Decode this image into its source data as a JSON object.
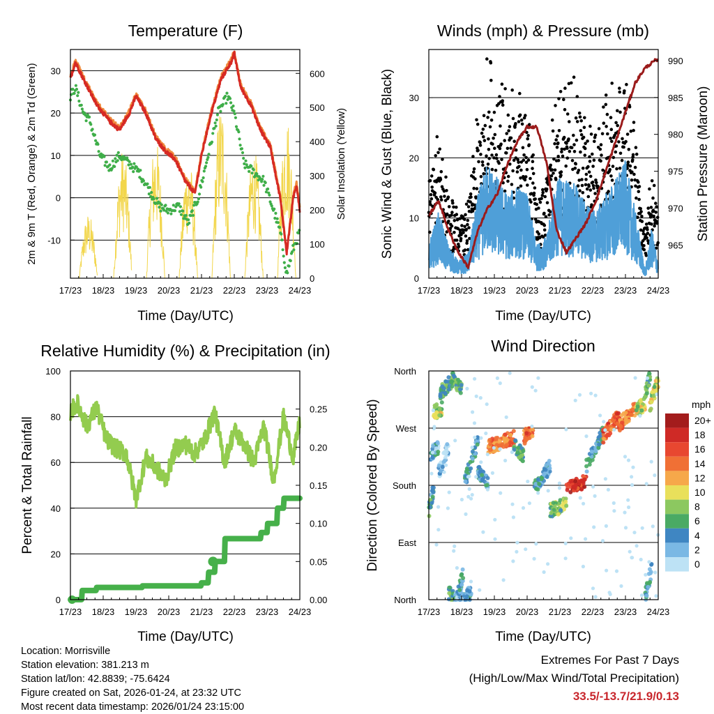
{
  "colors": {
    "temp2m": "#d62a24",
    "temp9m": "#f08a3c",
    "dewpoint": "#3fae49",
    "solar": "#f2d64b",
    "wind": "#4f9fd8",
    "gust": "#000000",
    "pressure": "#9b1b1b",
    "rh": "#93cc4f",
    "rain": "#46b04a",
    "extremes": "#c8262c"
  },
  "x_ticks": [
    "17/23",
    "18/23",
    "19/23",
    "20/23",
    "21/23",
    "22/23",
    "23/23",
    "24/23"
  ],
  "x_label": "Time (Day/UTC)",
  "chart_data": [
    {
      "type": "line",
      "title": "Temperature (F)",
      "xlabel": "Time (Day/UTC)",
      "ylabel": "2m & 9m T (Red, Orange) & 2m Td (Green)",
      "y2label": "Solar Insolation (Yellow)",
      "ylim": [
        -19,
        35
      ],
      "y2lim": [
        0,
        670
      ],
      "yticks": [
        "-10",
        "0",
        "10",
        "20",
        "30"
      ],
      "y2ticks": [
        "0",
        "100",
        "200",
        "300",
        "400",
        "500",
        "600"
      ],
      "series": [
        {
          "name": "2m T",
          "axis": "left",
          "t": [
            0,
            0.15,
            0.4,
            0.8,
            1.2,
            1.5,
            1.8,
            2.0,
            2.3,
            2.6,
            2.9,
            3.2,
            3.5,
            3.8,
            4.0,
            4.3,
            4.6,
            4.9,
            5.0,
            5.2,
            5.5,
            5.8,
            6.1,
            6.4,
            6.6,
            6.8,
            6.9,
            7.0
          ],
          "values": [
            28,
            32,
            28,
            22,
            18,
            16,
            20,
            24,
            20,
            14,
            11,
            9,
            4,
            1,
            10,
            20,
            28,
            32,
            34,
            26,
            22,
            16,
            12,
            0,
            -13,
            0,
            3,
            -3
          ]
        },
        {
          "name": "2m Td",
          "axis": "left",
          "t": [
            0,
            0.15,
            0.4,
            0.6,
            0.9,
            1.2,
            1.5,
            1.8,
            2.1,
            2.4,
            2.7,
            3.0,
            3.3,
            3.6,
            3.9,
            4.2,
            4.5,
            4.8,
            5.0,
            5.3,
            5.6,
            5.9,
            6.2,
            6.4,
            6.6,
            6.8,
            7.0
          ],
          "values": [
            24,
            26,
            20,
            18,
            10,
            7,
            10,
            8,
            6,
            2,
            -2,
            -3,
            -2,
            -6,
            0,
            10,
            20,
            24,
            20,
            8,
            6,
            4,
            -3,
            -8,
            -18,
            -12,
            -8
          ]
        },
        {
          "name": "Solar",
          "axis": "right",
          "peaks": [
            {
              "t": 0.55,
              "v": 190
            },
            {
              "t": 1.6,
              "v": 380
            },
            {
              "t": 2.6,
              "v": 410
            },
            {
              "t": 3.6,
              "v": 360
            },
            {
              "t": 4.6,
              "v": 520
            },
            {
              "t": 5.6,
              "v": 380
            },
            {
              "t": 6.6,
              "v": 480
            }
          ]
        }
      ]
    },
    {
      "type": "scatter",
      "title": "Winds (mph) & Pressure (mb)",
      "xlabel": "Time (Day/UTC)",
      "ylabel": "Sonic Wind & Gust (Blue, Black)",
      "y2label": "Station Pressure (Maroon)",
      "ylim": [
        0,
        38
      ],
      "y2lim": [
        960.5,
        991.5
      ],
      "yticks": [
        "0",
        "10",
        "20",
        "30"
      ],
      "y2ticks": [
        "965",
        "970",
        "975",
        "980",
        "985",
        "990"
      ],
      "series": [
        {
          "name": "Sonic Wind",
          "wind_t": [
            0,
            0.3,
            0.6,
            0.9,
            1.2,
            1.5,
            1.8,
            2.1,
            2.4,
            2.7,
            3.0,
            3.3,
            3.6,
            3.9,
            4.2,
            4.5,
            4.8,
            5.1,
            5.4,
            5.7,
            6.0,
            6.3,
            6.6,
            6.8,
            7.0
          ],
          "wind_v": [
            4,
            8,
            4,
            2,
            3,
            10,
            14,
            12,
            10,
            11,
            10,
            4,
            5,
            12,
            12,
            11,
            9,
            8,
            10,
            12,
            14,
            8,
            1,
            6,
            2
          ]
        },
        {
          "name": "Pressure",
          "t": [
            0,
            0.3,
            0.6,
            0.9,
            1.2,
            1.5,
            1.8,
            2.1,
            2.4,
            2.7,
            3.0,
            3.3,
            3.6,
            3.9,
            4.2,
            4.5,
            4.8,
            5.1,
            5.4,
            5.7,
            6.0,
            6.3,
            6.6,
            6.9,
            7.0
          ],
          "values": [
            969,
            971,
            967,
            964,
            962,
            967,
            970,
            972,
            976,
            979,
            981,
            981,
            976,
            967,
            964,
            966,
            968,
            971,
            975,
            979,
            983,
            987,
            989,
            990,
            990
          ]
        }
      ]
    },
    {
      "type": "line",
      "title": "Relative Humidity (%) & Precipitation (in)",
      "xlabel": "Time (Day/UTC)",
      "ylabel": "Percent & Total Rainfall",
      "ylim": [
        0,
        100
      ],
      "y2lim": [
        0,
        0.3
      ],
      "yticks": [
        "0",
        "20",
        "40",
        "60",
        "80",
        "100"
      ],
      "y2ticks": [
        "0.00",
        "0.05",
        "0.10",
        "0.15",
        "0.20",
        "0.25"
      ],
      "series": [
        {
          "name": "RH",
          "t": [
            0,
            0.2,
            0.5,
            0.8,
            1.1,
            1.4,
            1.7,
            2.0,
            2.3,
            2.6,
            2.9,
            3.2,
            3.5,
            3.8,
            4.1,
            4.4,
            4.7,
            5.0,
            5.3,
            5.6,
            5.9,
            6.2,
            6.5,
            6.8,
            7.0
          ],
          "values": [
            82,
            86,
            76,
            84,
            70,
            66,
            64,
            44,
            62,
            58,
            52,
            66,
            68,
            64,
            70,
            82,
            60,
            74,
            68,
            60,
            76,
            52,
            80,
            62,
            78
          ]
        },
        {
          "name": "Total Rainfall",
          "t": [
            0,
            0.2,
            0.35,
            0.8,
            1.8,
            2.2,
            2.8,
            3.6,
            4.0,
            4.2,
            4.4,
            4.7,
            5.0,
            5.5,
            5.8,
            6.0,
            6.2,
            6.3,
            6.5,
            7.0
          ],
          "values": [
            0,
            0,
            0.012,
            0.016,
            0.016,
            0.018,
            0.018,
            0.018,
            0.022,
            0.036,
            0.05,
            0.08,
            0.08,
            0.08,
            0.088,
            0.1,
            0.1,
            0.12,
            0.133,
            0.133
          ]
        }
      ]
    },
    {
      "type": "scatter",
      "title": "Wind Direction",
      "xlabel": "Time (Day/UTC)",
      "ylabel": "Direction (Colored By Speed)",
      "yticks": [
        "North",
        "East",
        "South",
        "West",
        "North"
      ],
      "ylim": [
        0,
        360
      ],
      "legend": {
        "title": "mph",
        "labels": [
          "20+",
          "18",
          "16",
          "14",
          "12",
          "10",
          "8",
          "6",
          "4",
          "2",
          "0"
        ],
        "colors": [
          "#a31c1c",
          "#cf2a26",
          "#e84730",
          "#f07035",
          "#f6a84a",
          "#e9e05b",
          "#8cc860",
          "#4aaa64",
          "#3f86c2",
          "#7ab8e4",
          "#bde2f5"
        ]
      },
      "segments": [
        {
          "t0": 0.0,
          "t1": 0.15,
          "d0": 140,
          "d1": 175,
          "s": 5
        },
        {
          "t0": 0.15,
          "t1": 0.4,
          "d0": 295,
          "d1": 300,
          "s": 9
        },
        {
          "t0": 0.35,
          "t1": 0.8,
          "d0": 325,
          "d1": 350,
          "s": 6
        },
        {
          "t0": 0.6,
          "t1": 0.75,
          "d0": 10,
          "d1": 5,
          "s": 5
        },
        {
          "t0": 0.8,
          "t1": 1.0,
          "d0": 345,
          "d1": 330,
          "s": 6
        },
        {
          "t0": 0.05,
          "t1": 0.3,
          "d0": 230,
          "d1": 240,
          "s": 3
        },
        {
          "t0": 0.3,
          "t1": 0.6,
          "d0": 200,
          "d1": 240,
          "s": 2
        },
        {
          "t0": 1.1,
          "t1": 1.5,
          "d0": 185,
          "d1": 250,
          "s": 4
        },
        {
          "t0": 1.5,
          "t1": 1.8,
          "d0": 200,
          "d1": 185,
          "s": 4
        },
        {
          "t0": 1.8,
          "t1": 2.6,
          "d0": 240,
          "d1": 255,
          "s": 14
        },
        {
          "t0": 2.6,
          "t1": 2.9,
          "d0": 245,
          "d1": 225,
          "s": 6
        },
        {
          "t0": 2.9,
          "t1": 3.2,
          "d0": 255,
          "d1": 270,
          "s": 15
        },
        {
          "t0": 3.2,
          "t1": 3.7,
          "d0": 175,
          "d1": 210,
          "s": 4
        },
        {
          "t0": 3.7,
          "t1": 4.2,
          "d0": 140,
          "d1": 150,
          "s": 7
        },
        {
          "t0": 4.2,
          "t1": 4.8,
          "d0": 178,
          "d1": 185,
          "s": 17
        },
        {
          "t0": 4.8,
          "t1": 5.3,
          "d0": 210,
          "d1": 260,
          "s": 4
        },
        {
          "t0": 5.3,
          "t1": 5.8,
          "d0": 255,
          "d1": 290,
          "s": 15
        },
        {
          "t0": 5.8,
          "t1": 6.3,
          "d0": 275,
          "d1": 300,
          "s": 14
        },
        {
          "t0": 6.3,
          "t1": 6.6,
          "d0": 295,
          "d1": 310,
          "s": 9
        },
        {
          "t0": 6.6,
          "t1": 6.75,
          "d0": 325,
          "d1": 350,
          "s": 6
        },
        {
          "t0": 6.75,
          "t1": 7.0,
          "d0": 305,
          "d1": 345,
          "s": 9
        },
        {
          "t0": 6.6,
          "t1": 6.8,
          "d0": 5,
          "d1": 50,
          "s": 4
        },
        {
          "t0": 0.8,
          "t1": 1.3,
          "d0": 0,
          "d1": 10,
          "s": 3
        },
        {
          "t0": 0.9,
          "t1": 1.05,
          "d0": 10,
          "d1": 40,
          "s": 4
        }
      ]
    }
  ],
  "station_info": [
    "Location: Morrisville",
    "Station elevation: 381.213 m",
    "Station lat/lon: 42.8839; -75.6424",
    "Figure created on Sat, 2026-01-24, at 23:32 UTC",
    "Most recent data timestamp: 2026/01/24 23:15:00"
  ],
  "extremes": {
    "title": "Extremes For Past 7 Days",
    "subtitle": "(High/Low/Max Wind/Total Precipitation)",
    "values": "33.5/-13.7/21.9/0.13"
  }
}
